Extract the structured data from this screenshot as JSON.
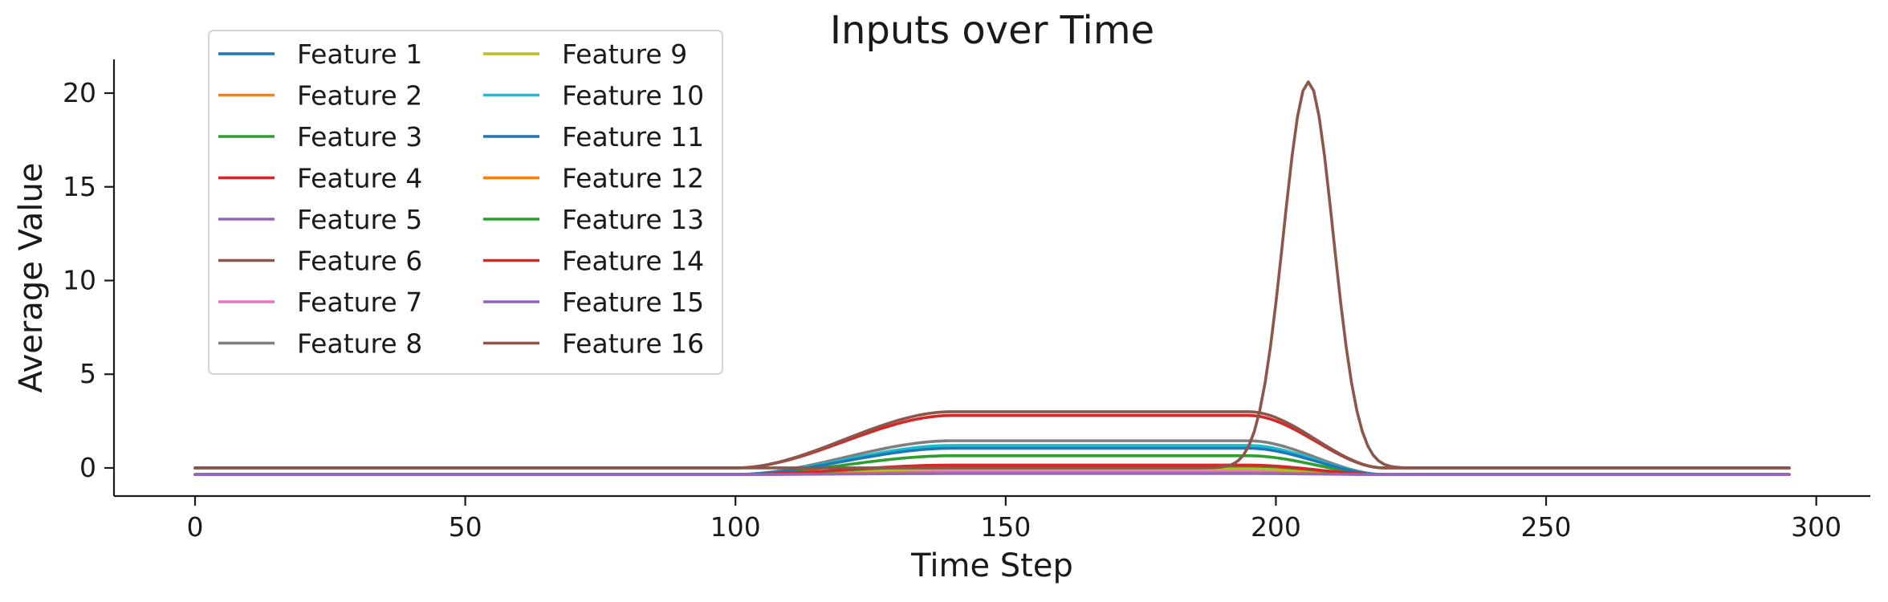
{
  "chart_data": {
    "type": "line",
    "title": "Inputs over Time",
    "xlabel": "Time Step",
    "ylabel": "Average Value",
    "xlim": [
      -15,
      310
    ],
    "ylim": [
      -1.5,
      21.8
    ],
    "xticks": [
      0,
      50,
      100,
      150,
      200,
      250,
      300
    ],
    "yticks": [
      0,
      5,
      10,
      15,
      20
    ],
    "grid": false,
    "legend": {
      "placement": "top-left",
      "columns": 2
    },
    "x_range": [
      0,
      295
    ],
    "series": [
      {
        "name": "Feature 1",
        "color": "#1f77b4",
        "base": -0.35,
        "shape": "plateau",
        "level": 0.05,
        "ramp_start": 100,
        "ramp_end": 140,
        "fall_start": 195,
        "fall_end": 220
      },
      {
        "name": "Feature 2",
        "color": "#ff7f0e",
        "base": -0.35,
        "shape": "plateau",
        "level": -0.1,
        "ramp_start": 100,
        "ramp_end": 140,
        "fall_start": 195,
        "fall_end": 220
      },
      {
        "name": "Feature 3",
        "color": "#2ca02c",
        "base": -0.35,
        "shape": "plateau",
        "level": 0.65,
        "ramp_start": 100,
        "ramp_end": 140,
        "fall_start": 195,
        "fall_end": 220
      },
      {
        "name": "Feature 4",
        "color": "#d62728",
        "base": 0.0,
        "shape": "plateau",
        "level": 2.8,
        "ramp_start": 100,
        "ramp_end": 140,
        "fall_start": 195,
        "fall_end": 220
      },
      {
        "name": "Feature 5",
        "color": "#9467bd",
        "base": -0.35,
        "shape": "plateau",
        "level": -0.2,
        "ramp_start": 100,
        "ramp_end": 140,
        "fall_start": 195,
        "fall_end": 220
      },
      {
        "name": "Feature 6",
        "color": "#8c564b",
        "base": 0.0,
        "shape": "plateau",
        "level": 3.0,
        "ramp_start": 100,
        "ramp_end": 140,
        "fall_start": 195,
        "fall_end": 220
      },
      {
        "name": "Feature 7",
        "color": "#e377c2",
        "base": -0.35,
        "shape": "plateau",
        "level": -0.15,
        "ramp_start": 100,
        "ramp_end": 140,
        "fall_start": 195,
        "fall_end": 220
      },
      {
        "name": "Feature 8",
        "color": "#7f7f7f",
        "base": -0.35,
        "shape": "plateau",
        "level": 1.45,
        "ramp_start": 100,
        "ramp_end": 140,
        "fall_start": 195,
        "fall_end": 220
      },
      {
        "name": "Feature 9",
        "color": "#bcbd22",
        "base": -0.35,
        "shape": "plateau",
        "level": -0.05,
        "ramp_start": 100,
        "ramp_end": 140,
        "fall_start": 195,
        "fall_end": 220
      },
      {
        "name": "Feature 10",
        "color": "#17becf",
        "base": -0.35,
        "shape": "plateau",
        "level": 1.2,
        "ramp_start": 100,
        "ramp_end": 140,
        "fall_start": 195,
        "fall_end": 220
      },
      {
        "name": "Feature 11",
        "color": "#1f77b4",
        "base": -0.35,
        "shape": "plateau",
        "level": 1.05,
        "ramp_start": 100,
        "ramp_end": 140,
        "fall_start": 195,
        "fall_end": 220
      },
      {
        "name": "Feature 12",
        "color": "#ff7f0e",
        "base": -0.35,
        "shape": "plateau",
        "level": -0.25,
        "ramp_start": 100,
        "ramp_end": 140,
        "fall_start": 195,
        "fall_end": 220
      },
      {
        "name": "Feature 13",
        "color": "#2ca02c",
        "base": -0.35,
        "shape": "plateau",
        "level": 0.1,
        "ramp_start": 100,
        "ramp_end": 140,
        "fall_start": 195,
        "fall_end": 220
      },
      {
        "name": "Feature 14",
        "color": "#d62728",
        "base": -0.35,
        "shape": "plateau",
        "level": 0.15,
        "ramp_start": 100,
        "ramp_end": 140,
        "fall_start": 195,
        "fall_end": 220
      },
      {
        "name": "Feature 15",
        "color": "#9467bd",
        "base": -0.35,
        "shape": "plateau",
        "level": -0.3,
        "ramp_start": 100,
        "ramp_end": 140,
        "fall_start": 195,
        "fall_end": 220
      },
      {
        "name": "Feature 16",
        "color": "#8c564b",
        "base": 0.0,
        "shape": "peak",
        "peak_x": 206,
        "peak_value": 20.6,
        "width": 4.6
      }
    ]
  }
}
